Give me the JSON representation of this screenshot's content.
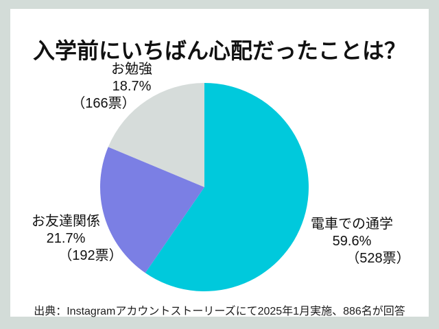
{
  "page": {
    "background_color": "#d3dcd8",
    "panel_color": "#ffffff"
  },
  "chart_data": {
    "type": "pie",
    "title": "入学前にいちばん心配だったことは？",
    "start_angle_deg": 0,
    "direction": "clockwise",
    "total_votes": 886,
    "slices": [
      {
        "id": "train",
        "label": "電車での通学",
        "percent": 59.6,
        "percent_label": "59.6%",
        "votes": 528,
        "votes_label": "（528票）",
        "color": "#00c9dc"
      },
      {
        "id": "friends",
        "label": "お友達関係",
        "percent": 21.7,
        "percent_label": "21.7%",
        "votes": 192,
        "votes_label": "（192票）",
        "color": "#7b7fe4"
      },
      {
        "id": "study",
        "label": "お勉強",
        "percent": 18.7,
        "percent_label": "18.7%",
        "votes": 166,
        "votes_label": "（166票）",
        "color": "#d6dcda"
      }
    ],
    "source": "出典：Instagramアカウントストーリーズにて2025年1月実施、886名が回答"
  }
}
